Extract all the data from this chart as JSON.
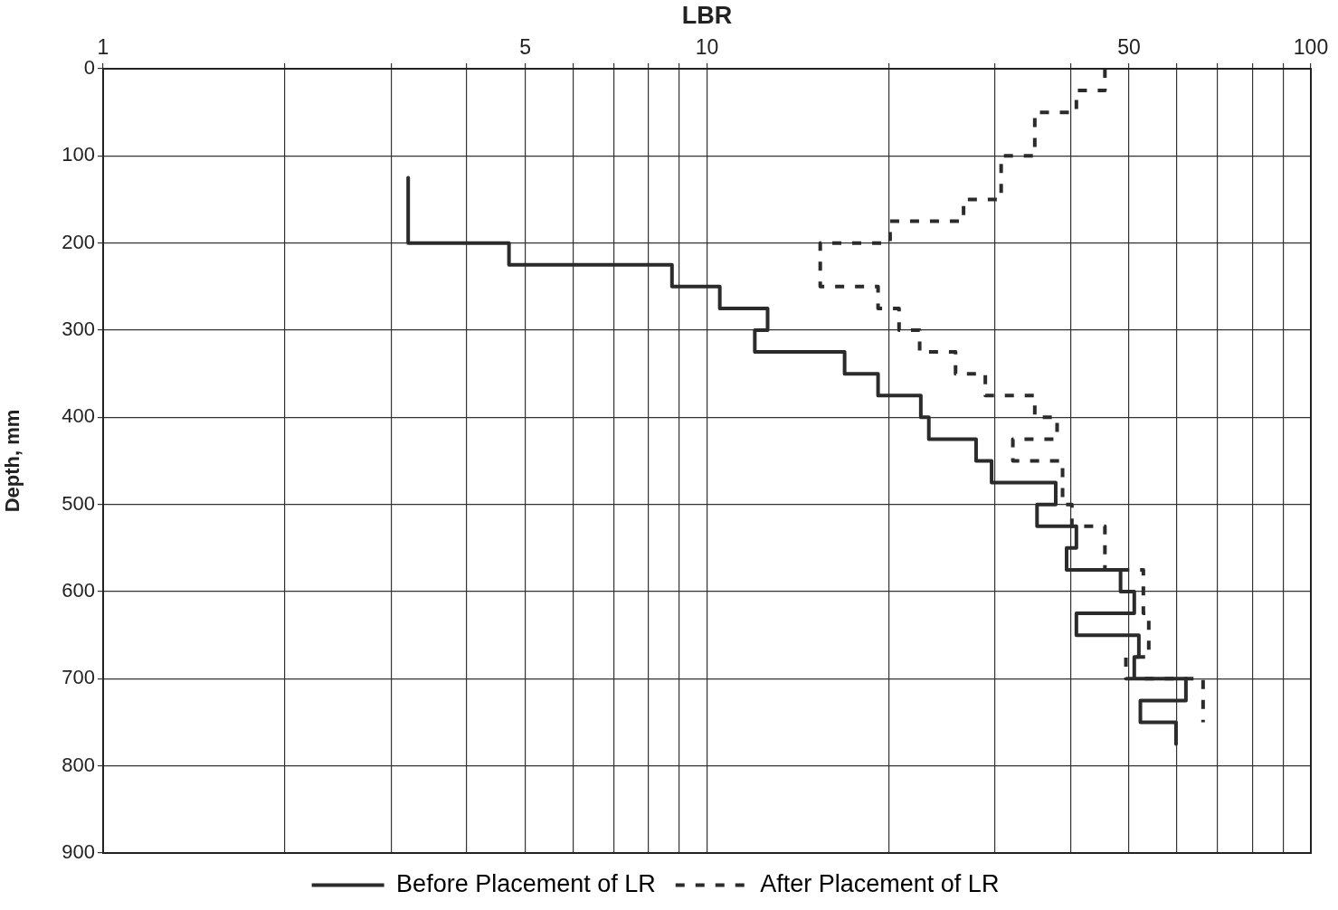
{
  "chart_data": {
    "type": "line",
    "xlabel": "LBR",
    "ylabel": "Depth, mm",
    "log": "x",
    "grid": true,
    "legend": "bottom",
    "marker": "none",
    "xlim": [
      1,
      100
    ],
    "xticks": [
      1,
      {
        "value": 2,
        "label": null
      },
      {
        "value": 3,
        "label": null
      },
      {
        "value": 4,
        "label": null
      },
      5,
      {
        "value": 6,
        "label": null
      },
      {
        "value": 7,
        "label": null
      },
      {
        "value": 8,
        "label": null
      },
      {
        "value": 9,
        "label": null
      },
      10,
      {
        "value": 20,
        "label": null
      },
      {
        "value": 30,
        "label": null
      },
      {
        "value": 40,
        "label": null
      },
      50,
      {
        "value": 60,
        "label": null
      },
      {
        "value": 70,
        "label": null
      },
      {
        "value": 80,
        "label": null
      },
      {
        "value": 90,
        "label": null
      },
      100
    ],
    "ylim": [
      900,
      0
    ],
    "yticks": [
      0,
      100,
      200,
      300,
      400,
      500,
      600,
      700,
      800,
      900
    ],
    "series": [
      {
        "name": "Before Placement of LR",
        "color": "#2b2b2b",
        "line_style": "solid",
        "x": [
          3.2,
          3.2,
          4.7,
          4.7,
          8.75,
          8.75,
          10.5,
          10.5,
          12.6,
          12.6,
          12,
          12,
          16.9,
          16.9,
          19.2,
          19.2,
          22.6,
          22.6,
          23.3,
          23.3,
          27.9,
          27.9,
          29.6,
          29.6,
          37.8,
          37.8,
          35.2,
          35.2,
          40.9,
          40.9,
          39.4,
          39.4,
          48.4,
          48.4,
          51,
          51,
          40.9,
          40.9,
          51.9,
          51.9,
          51,
          51,
          62.1,
          62.1,
          52.2,
          52.2,
          59.8,
          59.8
        ],
        "values": [
          125,
          200,
          200,
          225,
          225,
          250,
          250,
          275,
          275,
          300,
          300,
          325,
          325,
          350,
          350,
          375,
          375,
          400,
          400,
          425,
          425,
          450,
          450,
          475,
          475,
          500,
          500,
          525,
          525,
          550,
          550,
          575,
          575,
          600,
          600,
          625,
          625,
          650,
          650,
          675,
          675,
          700,
          700,
          725,
          725,
          750,
          750,
          775
        ]
      },
      {
        "name": "After Placement of LR",
        "color": "#2b2b2b",
        "line_style": "dashed",
        "x": [
          45.6,
          45.6,
          40.9,
          40.9,
          34.9,
          34.9,
          30.7,
          30.7,
          26.6,
          26.6,
          20.1,
          20.1,
          15.4,
          15.4,
          19.2,
          19.2,
          20.8,
          20.8,
          22.5,
          22.5,
          25.8,
          25.8,
          28.9,
          28.9,
          34.9,
          34.9,
          38,
          38,
          32.1,
          32.1,
          38.8,
          38.8,
          40.2,
          40.2,
          45.6,
          45.6,
          52.8,
          52.8,
          53.9,
          53.9,
          49.4,
          49.4,
          66.3,
          66.3
        ],
        "values": [
          0,
          25,
          25,
          50,
          50,
          100,
          100,
          150,
          150,
          175,
          175,
          200,
          200,
          250,
          250,
          275,
          275,
          300,
          300,
          325,
          325,
          350,
          350,
          375,
          375,
          400,
          400,
          425,
          425,
          450,
          450,
          500,
          500,
          525,
          525,
          575,
          575,
          625,
          625,
          675,
          675,
          700,
          700,
          750
        ]
      }
    ]
  }
}
